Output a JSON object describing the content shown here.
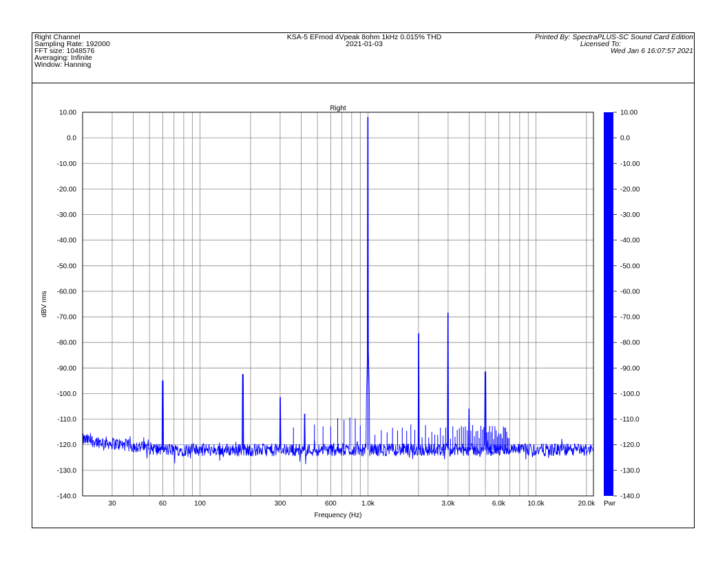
{
  "header": {
    "left": [
      "Right Channel",
      "Sampling Rate: 192000",
      "FFT size: 1048576",
      "Averaging: Infinite",
      "Window: Hanning"
    ],
    "center": [
      "KSA-5 EFmod 4Vpeak 8ohm 1kHz 0.015% THD",
      "2021-01-03"
    ],
    "right": [
      "Printed By: SpectraPLUS-SC Sound Card Edition",
      "Licensed To:",
      "Wed Jan  6 16:07:57 2021"
    ]
  },
  "colors": {
    "trace": "#0000ff",
    "grid": "#888888",
    "frame": "#000000"
  },
  "chart_data": {
    "type": "line",
    "title": "Right",
    "xlabel": "Frequency (Hz)",
    "ylabel": "dBV rms",
    "x_scale": "log",
    "xlim": [
      20,
      22000
    ],
    "ylim": [
      -140,
      10
    ],
    "grid": true,
    "y_ticks": [
      10,
      0,
      -10,
      -20,
      -30,
      -40,
      -50,
      -60,
      -70,
      -80,
      -90,
      -100,
      -110,
      -120,
      -130,
      -140
    ],
    "y_tick_labels": [
      "10.00",
      "0.0",
      "-10.00",
      "-20.00",
      "-30.00",
      "-40.00",
      "-50.00",
      "-60.00",
      "-70.00",
      "-80.00",
      "-90.00",
      "-100.0",
      "-110.0",
      "-120.0",
      "-130.0",
      "-140.0"
    ],
    "x_ticks": [
      30,
      60,
      100,
      300,
      600,
      1000,
      3000,
      6000,
      10000,
      20000
    ],
    "x_tick_labels": [
      "30",
      "60",
      "100",
      "300",
      "600",
      "1.0k",
      "3.0k",
      "6.0k",
      "10.0k",
      "20.0k"
    ],
    "noise_floor_db": -122,
    "series": [
      {
        "name": "",
        "peaks": [
          {
            "x": 60,
            "y": -95
          },
          {
            "x": 180,
            "y": -92.5
          },
          {
            "x": 300,
            "y": -101.5
          },
          {
            "x": 420,
            "y": -108
          },
          {
            "x": 1000,
            "y": 8
          },
          {
            "x": 2000,
            "y": -76.5
          },
          {
            "x": 3000,
            "y": -68.5
          },
          {
            "x": 4000,
            "y": -106
          },
          {
            "x": 5000,
            "y": -91.5
          }
        ]
      }
    ],
    "colorbar": {
      "ticks": [
        10,
        0,
        -10,
        -20,
        -30,
        -40,
        -50,
        -60,
        -70,
        -80,
        -90,
        -100,
        -110,
        -120,
        -130,
        -140
      ],
      "tick_labels": [
        "10.00",
        "0.0",
        "-10.00",
        "-20.00",
        "-30.00",
        "-40.00",
        "-50.00",
        "-60.00",
        "-70.00",
        "-80.00",
        "-90.00",
        "-100.0",
        "-110.0",
        "-120.0",
        "-130.0",
        "-140.0"
      ],
      "label": "Pwr"
    }
  }
}
